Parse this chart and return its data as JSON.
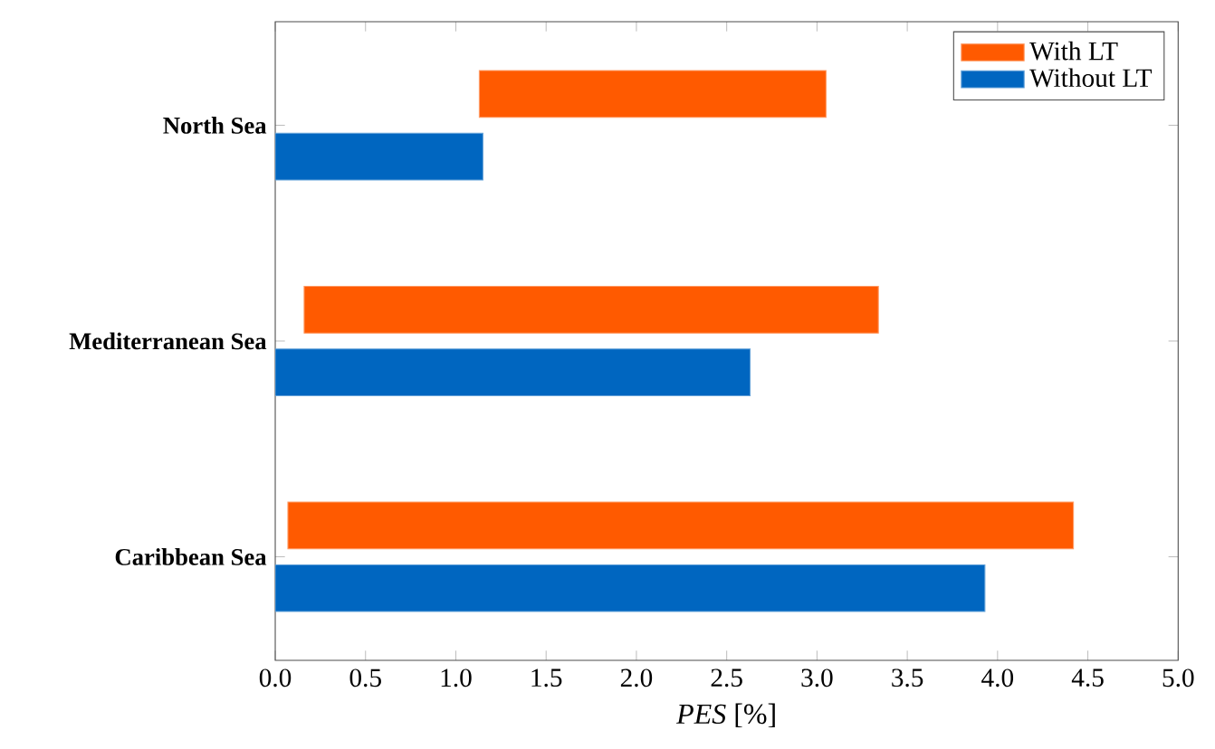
{
  "chart_data": {
    "type": "bar",
    "orientation": "horizontal",
    "xlabel": "*PES* [%]",
    "categories": [
      "North Sea",
      "Mediterranean Sea",
      "Caribbean Sea"
    ],
    "series": [
      {
        "name": "With LT",
        "color": "#ff5a00",
        "base": [
          1.13,
          0.16,
          0.07
        ],
        "values": [
          1.92,
          3.18,
          4.35
        ]
      },
      {
        "name": "Without LT",
        "color": "#0066c0",
        "values": [
          1.15,
          2.63,
          3.93
        ]
      }
    ],
    "xlim": [
      0,
      5
    ],
    "xticks": [
      {
        "value": 0,
        "label": "0.0"
      },
      {
        "value": 0.5,
        "label": "0.5"
      },
      {
        "value": 1,
        "label": "1.0"
      },
      {
        "value": 1.5,
        "label": "1.5"
      },
      {
        "value": 2,
        "label": "2.0"
      },
      {
        "value": 2.5,
        "label": "2.5"
      },
      {
        "value": 3,
        "label": "3.0"
      },
      {
        "value": 3.5,
        "label": "3.5"
      },
      {
        "value": 4,
        "label": "4.0"
      },
      {
        "value": 4.5,
        "label": "4.5"
      },
      {
        "value": 5,
        "label": "5.0"
      }
    ],
    "legend": "top right",
    "grid": false
  }
}
